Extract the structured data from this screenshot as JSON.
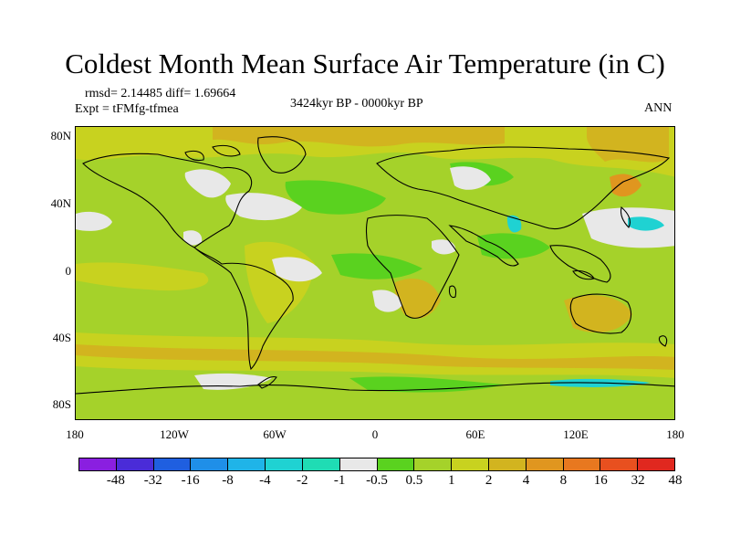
{
  "title": "Coldest Month Mean Surface Air Temperature (in C)",
  "stats_line": "rmsd= 2.14485 diff= 1.69664",
  "expt_line": "Expt = tFMfg-tfmea",
  "period": "3424kyr BP - 0000kyr BP",
  "season": "ANN",
  "lat_ticks": [
    "80N",
    "40N",
    "0",
    "40S",
    "80S"
  ],
  "lon_ticks": [
    "180",
    "120W",
    "60W",
    "0",
    "60E",
    "120E",
    "180"
  ],
  "colorbar": {
    "colors": [
      "#8a1fe0",
      "#4a2cd8",
      "#1f5fe0",
      "#1f8fe8",
      "#1fb4e8",
      "#1fd2d2",
      "#1fdcb4",
      "#e8e8e8",
      "#5ad21f",
      "#a5d22a",
      "#c8d21f",
      "#d2b41f",
      "#e0961f",
      "#e8781f",
      "#e8501f",
      "#e0281f"
    ],
    "labels": [
      "-48",
      "-32",
      "-16",
      "-8",
      "-4",
      "-2",
      "-1",
      "-0.5",
      "0.5",
      "1",
      "2",
      "4",
      "8",
      "16",
      "32",
      "48"
    ]
  },
  "field_colors": {
    "background": "#a5d22a",
    "light_green": "#5ad21f",
    "warm_yellow": "#c8d21f",
    "orange": "#d2b41f",
    "deep_orange": "#e0961f",
    "near_zero": "#e8e8e8",
    "cyan": "#1fd2d2"
  }
}
